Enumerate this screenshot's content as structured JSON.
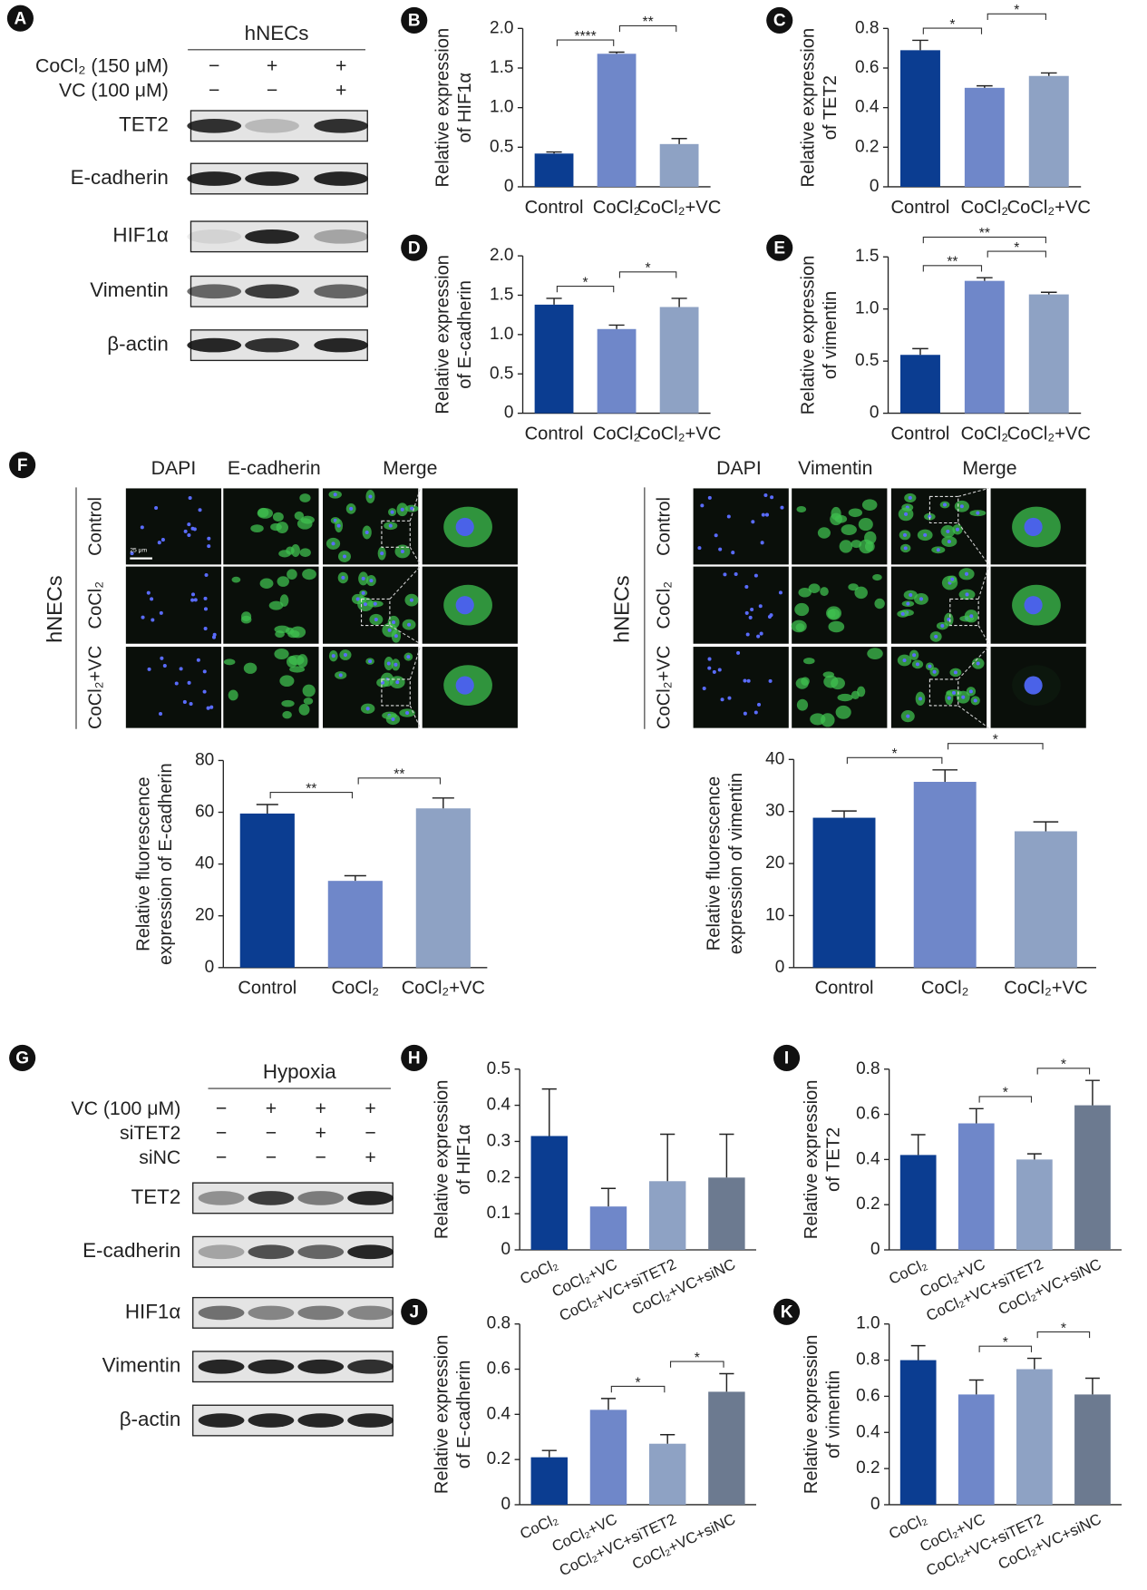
{
  "blot_a": {
    "panel": "A",
    "title": "hNECs",
    "conditions": [
      {
        "label": "CoCl₂ (150 μM)",
        "signs": [
          "−",
          "+",
          "+"
        ]
      },
      {
        "label": "VC (100 μM)",
        "signs": [
          "−",
          "−",
          "+"
        ]
      }
    ],
    "proteins": [
      "TET2",
      "E-cadherin",
      "HIF1α",
      "Vimentin",
      "β-actin"
    ]
  },
  "blot_g": {
    "panel": "G",
    "title": "Hypoxia",
    "conditions": [
      {
        "label": "VC (100 μM)",
        "signs": [
          "−",
          "+",
          "+",
          "+"
        ]
      },
      {
        "label": "siTET2",
        "signs": [
          "−",
          "−",
          "+",
          "−"
        ]
      },
      {
        "label": "siNC",
        "signs": [
          "−",
          "−",
          "−",
          "+"
        ]
      }
    ],
    "proteins": [
      "TET2",
      "E-cadherin",
      "HIF1α",
      "Vimentin",
      "β-actin"
    ]
  },
  "micro_f": {
    "panel": "F",
    "scale_bar": "25 μm",
    "groups": [
      {
        "label": "hNECs",
        "columns": [
          "DAPI",
          "E-cadherin",
          "Merge"
        ],
        "rows": [
          "Control",
          "CoCl₂",
          "CoCl₂+VC"
        ]
      },
      {
        "label": "hNECs",
        "columns": [
          "DAPI",
          "Vimentin",
          "Merge"
        ],
        "rows": [
          "Control",
          "CoCl₂",
          "CoCl₂+VC"
        ]
      }
    ]
  },
  "chart_data": [
    {
      "type": "bar",
      "panel": "B",
      "ylabel": [
        "Relative expression",
        "of HIF1α"
      ],
      "categories": [
        "Control",
        "CoCl₂",
        "CoCl₂+VC"
      ],
      "values": [
        0.42,
        1.68,
        0.54
      ],
      "errors": [
        0.02,
        0.02,
        0.07
      ],
      "colors": [
        "#0b3d91",
        "#6f87c9",
        "#8ea2c4"
      ],
      "ylim": [
        0,
        2
      ],
      "yticks": [
        0,
        0.5,
        {
          "value": 1,
          "label": "1.0"
        },
        1.5,
        {
          "value": 2,
          "label": "2.0"
        }
      ],
      "annotations": [
        {
          "from": 0,
          "to": 1,
          "label": "****"
        },
        {
          "from": 1,
          "to": 2,
          "label": "**"
        }
      ]
    },
    {
      "type": "bar",
      "panel": "C",
      "ylabel": [
        "Relative expression",
        "of TET2"
      ],
      "categories": [
        "Control",
        "CoCl₂",
        "CoCl₂+VC"
      ],
      "values": [
        0.69,
        0.5,
        0.56
      ],
      "errors": [
        0.05,
        0.01,
        0.015
      ],
      "colors": [
        "#0b3d91",
        "#6f87c9",
        "#8ea2c4"
      ],
      "ylim": [
        0,
        0.8
      ],
      "yticks": [
        0,
        0.2,
        0.4,
        0.6,
        0.8
      ],
      "annotations": [
        {
          "from": 0,
          "to": 1,
          "label": "*"
        },
        {
          "from": 1,
          "to": 2,
          "label": "*"
        }
      ]
    },
    {
      "type": "bar",
      "panel": "D",
      "ylabel": [
        "Relative expression",
        "of E-cadherin"
      ],
      "categories": [
        "Control",
        "CoCl₂",
        "CoCl₂+VC"
      ],
      "values": [
        1.38,
        1.07,
        1.35
      ],
      "errors": [
        0.08,
        0.05,
        0.11
      ],
      "colors": [
        "#0b3d91",
        "#6f87c9",
        "#8ea2c4"
      ],
      "ylim": [
        0,
        2
      ],
      "yticks": [
        0,
        0.5,
        {
          "value": 1,
          "label": "1.0"
        },
        1.5,
        {
          "value": 2,
          "label": "2.0"
        }
      ],
      "annotations": [
        {
          "from": 0,
          "to": 1,
          "label": "*"
        },
        {
          "from": 1,
          "to": 2,
          "label": "*"
        }
      ]
    },
    {
      "type": "bar",
      "panel": "E",
      "ylabel": [
        "Relative expression",
        "of vimentin"
      ],
      "categories": [
        "Control",
        "CoCl₂",
        "CoCl₂+VC"
      ],
      "values": [
        0.56,
        1.27,
        1.14
      ],
      "errors": [
        0.06,
        0.03,
        0.02
      ],
      "colors": [
        "#0b3d91",
        "#6f87c9",
        "#8ea2c4"
      ],
      "ylim": [
        0,
        1.5
      ],
      "yticks": [
        0,
        0.5,
        {
          "value": 1,
          "label": "1.0"
        },
        1.5
      ],
      "annotations": [
        {
          "from": 0,
          "to": 1,
          "label": "**"
        },
        {
          "from": 1,
          "to": 2,
          "label": "*"
        },
        {
          "from": 0,
          "to": 2,
          "label": "**"
        }
      ]
    },
    {
      "type": "bar",
      "ylabel": [
        "Relative fluorescence",
        "expression of E-cadherin"
      ],
      "categories": [
        "Control",
        "CoCl₂",
        "CoCl₂+VC"
      ],
      "values": [
        59.5,
        33.5,
        61.5
      ],
      "errors": [
        3.5,
        2,
        4
      ],
      "colors": [
        "#0b3d91",
        "#6f87c9",
        "#8ea2c4"
      ],
      "ylim": [
        0,
        80
      ],
      "yticks": [
        0,
        20,
        40,
        60,
        80
      ],
      "annotations": [
        {
          "from": 0,
          "to": 1,
          "label": "**"
        },
        {
          "from": 1,
          "to": 2,
          "label": "**"
        }
      ]
    },
    {
      "type": "bar",
      "ylabel": [
        "Relative fluorescence",
        "expression of vimentin"
      ],
      "categories": [
        "Control",
        "CoCl₂",
        "CoCl₂+VC"
      ],
      "values": [
        28.8,
        35.7,
        26.2
      ],
      "errors": [
        1.3,
        2.3,
        1.8
      ],
      "colors": [
        "#0b3d91",
        "#6f87c9",
        "#8ea2c4"
      ],
      "ylim": [
        0,
        40
      ],
      "yticks": [
        0,
        10,
        20,
        30,
        40
      ],
      "annotations": [
        {
          "from": 0,
          "to": 1,
          "label": "*"
        },
        {
          "from": 1,
          "to": 2,
          "label": "*"
        }
      ]
    },
    {
      "type": "bar",
      "panel": "H",
      "ylabel": [
        "Relative expression",
        "of HIF1α"
      ],
      "categories": [
        "CoCl₂",
        "CoCl₂+VC",
        "CoCl₂+VC+siTET2",
        "CoCl₂+VC+siNC"
      ],
      "values": [
        0.315,
        0.12,
        0.19,
        0.2
      ],
      "errors": [
        0.13,
        0.05,
        0.13,
        0.12
      ],
      "colors": [
        "#0b3d91",
        "#6f87c9",
        "#8ea2c4",
        "#6c7a90"
      ],
      "ylim": [
        0,
        0.5
      ],
      "yticks": [
        0,
        0.1,
        0.2,
        0.3,
        0.4,
        0.5
      ],
      "annotations": []
    },
    {
      "type": "bar",
      "panel": "I",
      "ylabel": [
        "Relative expression",
        "of TET2"
      ],
      "categories": [
        "CoCl₂",
        "CoCl₂+VC",
        "CoCl₂+VC+siTET2",
        "CoCl₂+VC+siNC"
      ],
      "values": [
        0.42,
        0.56,
        0.4,
        0.64
      ],
      "errors": [
        0.09,
        0.065,
        0.025,
        0.11
      ],
      "colors": [
        "#0b3d91",
        "#6f87c9",
        "#8ea2c4",
        "#6c7a90"
      ],
      "ylim": [
        0,
        0.8
      ],
      "yticks": [
        0,
        0.2,
        0.4,
        0.6,
        0.8
      ],
      "annotations": [
        {
          "from": 1,
          "to": 2,
          "label": "*"
        },
        {
          "from": 2,
          "to": 3,
          "label": "*"
        }
      ]
    },
    {
      "type": "bar",
      "panel": "J",
      "ylabel": [
        "Relative expression",
        "of E-cadherin"
      ],
      "categories": [
        "CoCl₂",
        "CoCl₂+VC",
        "CoCl₂+VC+siTET2",
        "CoCl₂+VC+siNC"
      ],
      "values": [
        0.21,
        0.42,
        0.27,
        0.5
      ],
      "errors": [
        0.03,
        0.05,
        0.04,
        0.08
      ],
      "colors": [
        "#0b3d91",
        "#6f87c9",
        "#8ea2c4",
        "#6c7a90"
      ],
      "ylim": [
        0,
        0.8
      ],
      "yticks": [
        0,
        0.2,
        0.4,
        0.6,
        0.8
      ],
      "annotations": [
        {
          "from": 1,
          "to": 2,
          "label": "*"
        },
        {
          "from": 2,
          "to": 3,
          "label": "*"
        }
      ]
    },
    {
      "type": "bar",
      "panel": "K",
      "ylabel": [
        "Relative expression",
        "of vimentin"
      ],
      "categories": [
        "CoCl₂",
        "CoCl₂+VC",
        "CoCl₂+VC+siTET2",
        "CoCl₂+VC+siNC"
      ],
      "values": [
        0.8,
        0.61,
        0.75,
        0.61
      ],
      "errors": [
        0.08,
        0.08,
        0.06,
        0.09
      ],
      "colors": [
        "#0b3d91",
        "#6f87c9",
        "#8ea2c4",
        "#6c7a90"
      ],
      "ylim": [
        0,
        1
      ],
      "yticks": [
        0,
        0.2,
        0.4,
        0.6,
        0.8,
        {
          "value": 1,
          "label": "1.0"
        }
      ],
      "annotations": [
        {
          "from": 1,
          "to": 2,
          "label": "*"
        },
        {
          "from": 2,
          "to": 3,
          "label": "*"
        }
      ]
    }
  ]
}
